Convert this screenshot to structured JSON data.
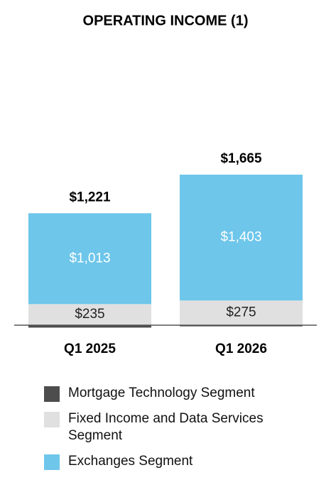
{
  "chart_data": {
    "type": "stacked-bar",
    "title": "OPERATING INCOME (1)",
    "categories": [
      "Q1 2025",
      "Q1 2026"
    ],
    "series": [
      {
        "name": "Mortgage Technology Segment",
        "color": "#4d4d4d",
        "values": [
          -27,
          -13
        ]
      },
      {
        "name": "Fixed Income and Data Services Segment",
        "color": "#e0e0e0",
        "values": [
          235,
          275
        ],
        "value_labels": [
          "$235",
          "$275"
        ]
      },
      {
        "name": "Exchanges Segment",
        "color": "#6ec6ea",
        "values": [
          1013,
          1403
        ],
        "value_labels": [
          "$1,013",
          "$1,403"
        ]
      }
    ],
    "totals": {
      "values": [
        1221,
        1665
      ],
      "value_labels": [
        "$1,221",
        "$1,665"
      ]
    }
  }
}
